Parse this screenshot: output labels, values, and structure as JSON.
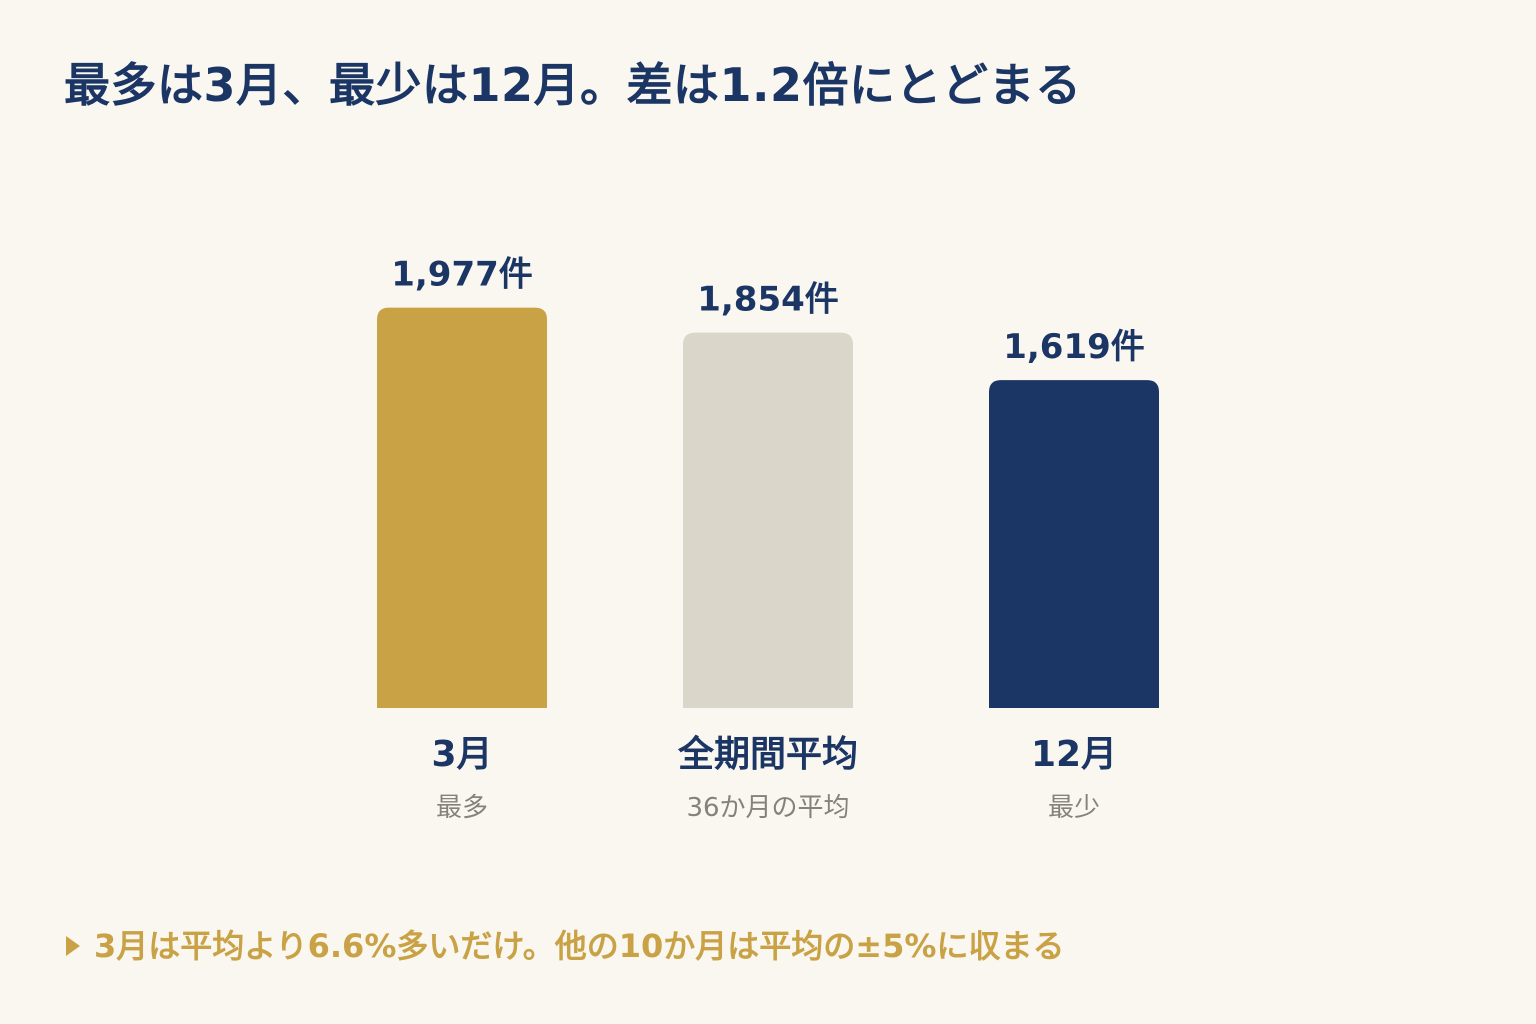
{
  "title": "最多は3月、最少は12月。差は1.2倍にとどまる",
  "chart_data": {
    "type": "bar",
    "categories": [
      "3月",
      "全期間平均",
      "12月"
    ],
    "sublabels": [
      "最多",
      "36か月の平均",
      "最少"
    ],
    "values": [
      1977,
      1854,
      1619
    ],
    "value_labels": [
      "1,977件",
      "1,854件",
      "1,619件"
    ],
    "colors": [
      "#C9A246",
      "#DAD6CA",
      "#1B3564"
    ],
    "unit": "件",
    "ylim": [
      0,
      2000
    ],
    "grid": false
  },
  "note": {
    "icon": "triangle-right-icon",
    "text": "3月は平均より6.6%多いだけ。他の10か月は平均の±5%に収まる"
  }
}
